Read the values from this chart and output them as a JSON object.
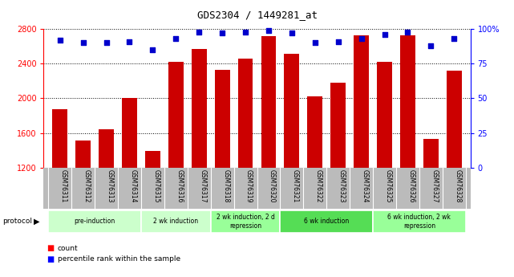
{
  "title": "GDS2304 / 1449281_at",
  "samples": [
    "GSM76311",
    "GSM76312",
    "GSM76313",
    "GSM76314",
    "GSM76315",
    "GSM76316",
    "GSM76317",
    "GSM76318",
    "GSM76319",
    "GSM76320",
    "GSM76321",
    "GSM76322",
    "GSM76323",
    "GSM76324",
    "GSM76325",
    "GSM76326",
    "GSM76327",
    "GSM76328"
  ],
  "counts": [
    1870,
    1510,
    1640,
    2000,
    1390,
    2420,
    2570,
    2330,
    2460,
    2720,
    2510,
    2020,
    2180,
    2730,
    2420,
    2730,
    1530,
    2320
  ],
  "percentiles": [
    92,
    90,
    90,
    91,
    85,
    93,
    98,
    97,
    98,
    99,
    97,
    90,
    91,
    93,
    96,
    98,
    88,
    93
  ],
  "ylim_left": [
    1200,
    2800
  ],
  "ylim_right": [
    0,
    100
  ],
  "yticks_left": [
    1200,
    1600,
    2000,
    2400,
    2800
  ],
  "yticks_right": [
    0,
    25,
    50,
    75,
    100
  ],
  "bar_color": "#cc0000",
  "dot_color": "#0000cc",
  "protocol_groups": [
    {
      "label": "pre-induction",
      "start": 0,
      "end": 3,
      "color": "#ccffcc"
    },
    {
      "label": "2 wk induction",
      "start": 4,
      "end": 6,
      "color": "#ccffcc"
    },
    {
      "label": "2 wk induction, 2 d\nrepression",
      "start": 7,
      "end": 9,
      "color": "#99ff99"
    },
    {
      "label": "6 wk induction",
      "start": 10,
      "end": 13,
      "color": "#55dd55"
    },
    {
      "label": "6 wk induction, 2 wk\nrepression",
      "start": 14,
      "end": 17,
      "color": "#99ff99"
    }
  ],
  "legend_count_label": "count",
  "legend_pct_label": "percentile rank within the sample",
  "protocol_label": "protocol",
  "bg_color": "#ffffff",
  "tick_area_color": "#bbbbbb"
}
